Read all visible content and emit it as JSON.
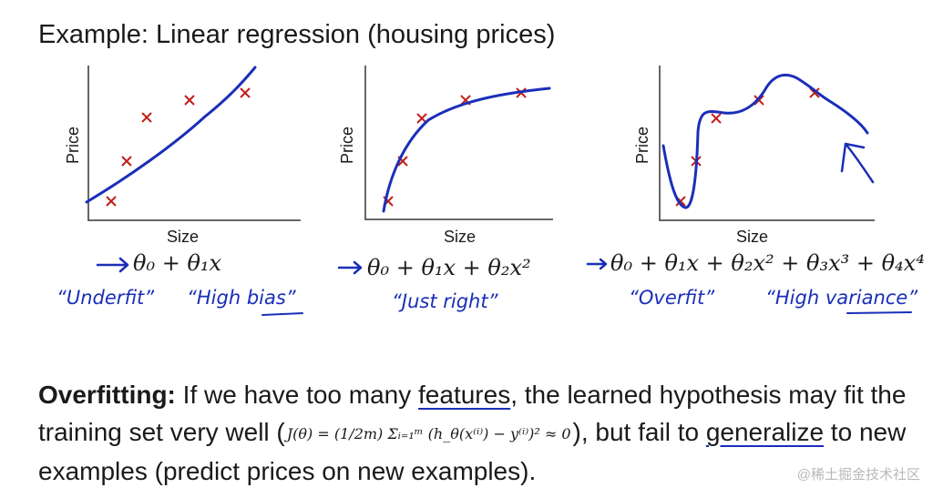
{
  "title": "Example: Linear regression (housing prices)",
  "plots": [
    {
      "xlabel": "Size",
      "ylabel": "Price",
      "hypothesis": "θ₀ + θ₁x",
      "notes": [
        "“Underfit”",
        "“High bias”"
      ]
    },
    {
      "xlabel": "Size",
      "ylabel": "Price",
      "hypothesis": "θ₀ + θ₁x + θ₂x²",
      "notes": [
        "“Just right”"
      ]
    },
    {
      "xlabel": "Size",
      "ylabel": "Price",
      "hypothesis": "θ₀ + θ₁x + θ₂x² + θ₃x³ + θ₄x⁴",
      "notes": [
        "“Overfit”",
        "“High variance”"
      ]
    }
  ],
  "body": {
    "term": "Overfitting:",
    "part1": " If we have too many ",
    "features": "features",
    "part2": ", the learned hypothesis may fit the training set very well (",
    "formula": "J(θ) = (1/2m) Σᵢ₌₁ᵐ (h_θ(x⁽ⁱ⁾) − y⁽ⁱ⁾)² ≈ 0",
    "part3": "), but fail to ",
    "generalize": "generalize",
    "part4": " to new examples (predict prices on new examples)."
  },
  "watermark": "@稀土掘金技术社区",
  "colors": {
    "ink": "#1a2fb8",
    "points": "#c0201a"
  }
}
